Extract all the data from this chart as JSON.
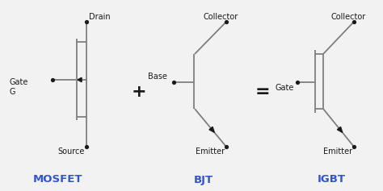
{
  "bg_color": "#f2f2f2",
  "line_color": "#7f7f7f",
  "dot_color": "#1a1a1a",
  "text_color": "#1a1a1a",
  "blue_color": "#3355cc",
  "mosfet_label": "MOSFET",
  "bjt_label": "BJT",
  "igbt_label": "IGBT",
  "plus_text": "+",
  "equals_text": "=",
  "drain_text": "Drain",
  "source_text": "Source",
  "gate_text": "Gate\nG",
  "collector_text1": "Collector",
  "emitter_text1": "Emitter",
  "base_text": "Base",
  "collector_text2": "Collector",
  "emitter_text2": "Emitter",
  "gate_text2": "Gate"
}
